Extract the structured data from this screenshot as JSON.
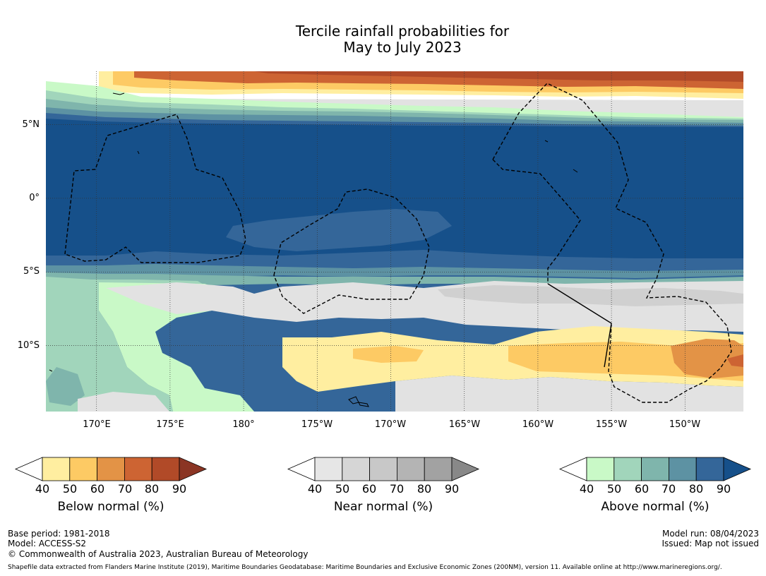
{
  "title": {
    "line1": "Tercile rainfall probabilities for",
    "line2": "May to July 2023"
  },
  "map": {
    "lat_labels": [
      "5°N",
      "0°",
      "5°S",
      "10°S"
    ],
    "lon_labels": [
      "170°E",
      "175°E",
      "180°",
      "175°W",
      "170°W",
      "165°W",
      "160°W",
      "155°W",
      "150°W"
    ],
    "lat_values": [
      5,
      0,
      -5,
      -10
    ],
    "lon_values": [
      170,
      175,
      180,
      185,
      190,
      195,
      200,
      205,
      210
    ],
    "extent": {
      "lon_min": 166,
      "lon_max": 213.4,
      "lat_min": -14.6,
      "lat_max": 8.5
    }
  },
  "colorbars": [
    {
      "name": "below",
      "title": "Below normal (%)",
      "ticks": [
        "40",
        "50",
        "60",
        "70",
        "80",
        "90"
      ],
      "colors": [
        "#ffffff",
        "#ffeea0",
        "#fdca64",
        "#e39346",
        "#cd6433",
        "#b14a28",
        "#8b3524"
      ]
    },
    {
      "name": "near",
      "title": "Near normal (%)",
      "ticks": [
        "40",
        "50",
        "60",
        "70",
        "80",
        "90"
      ],
      "colors": [
        "#ffffff",
        "#e6e6e6",
        "#d6d6d6",
        "#c8c8c8",
        "#b4b4b4",
        "#a2a2a2",
        "#888888"
      ]
    },
    {
      "name": "above",
      "title": "Above normal (%)",
      "ticks": [
        "40",
        "50",
        "60",
        "70",
        "80",
        "90"
      ],
      "colors": [
        "#ffffff",
        "#c9f9c7",
        "#a1d5bb",
        "#7fb5ac",
        "#5d92a3",
        "#346699",
        "#16508a"
      ]
    }
  ],
  "info": {
    "base_period": "Base period: 1981-2018",
    "model": "Model: ACCESS-S2",
    "copyright": "© Commonwealth of Australia 2023, Australian Bureau of Meteorology",
    "model_run": "Model run: 08/04/2023",
    "issued": "Issued: Map not issued",
    "shapefile": "Shapefile data extracted from Flanders Marine Institute (2019), Maritime Boundaries Geodatabase: Maritime Boundaries and Exclusive Economic Zones (200NM), version 11. Available online at http://www.marineregions.org/."
  }
}
